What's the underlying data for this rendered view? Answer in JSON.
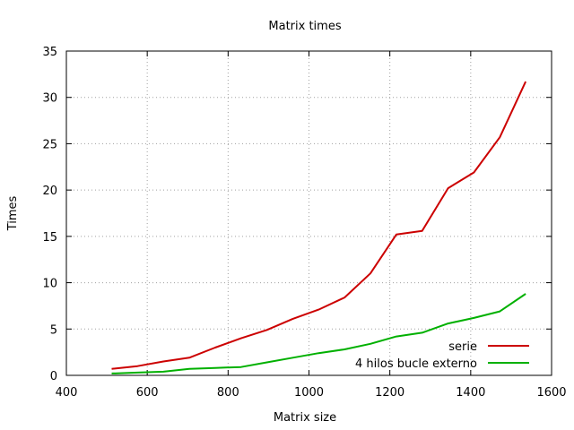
{
  "chart_data": {
    "type": "line",
    "title": "Matrix times",
    "xlabel": "Matrix size",
    "ylabel": "Times",
    "xlim": [
      400,
      1600
    ],
    "ylim": [
      0,
      35
    ],
    "xticks": [
      400,
      600,
      800,
      1000,
      1200,
      1400,
      1600
    ],
    "yticks": [
      0,
      5,
      10,
      15,
      20,
      25,
      30,
      35
    ],
    "grid": true,
    "legend_position": "bottom-right",
    "series": [
      {
        "name": "serie",
        "color": "#cc0000",
        "x": [
          512,
          576,
          640,
          704,
          768,
          832,
          896,
          960,
          1024,
          1088,
          1152,
          1216,
          1280,
          1344,
          1408,
          1472,
          1536
        ],
        "y": [
          0.7,
          1.0,
          1.5,
          1.9,
          3.0,
          4.0,
          4.9,
          6.1,
          7.1,
          8.4,
          11.0,
          15.2,
          15.6,
          20.2,
          21.9,
          25.7,
          31.7
        ]
      },
      {
        "name": "4 hilos bucle externo",
        "color": "#00b000",
        "x": [
          512,
          576,
          640,
          704,
          768,
          832,
          896,
          960,
          1024,
          1088,
          1152,
          1216,
          1280,
          1344,
          1408,
          1472,
          1536
        ],
        "y": [
          0.2,
          0.3,
          0.4,
          0.7,
          0.8,
          0.9,
          1.4,
          1.9,
          2.4,
          2.8,
          3.4,
          4.2,
          4.6,
          5.6,
          6.2,
          6.9,
          8.8
        ]
      }
    ]
  }
}
